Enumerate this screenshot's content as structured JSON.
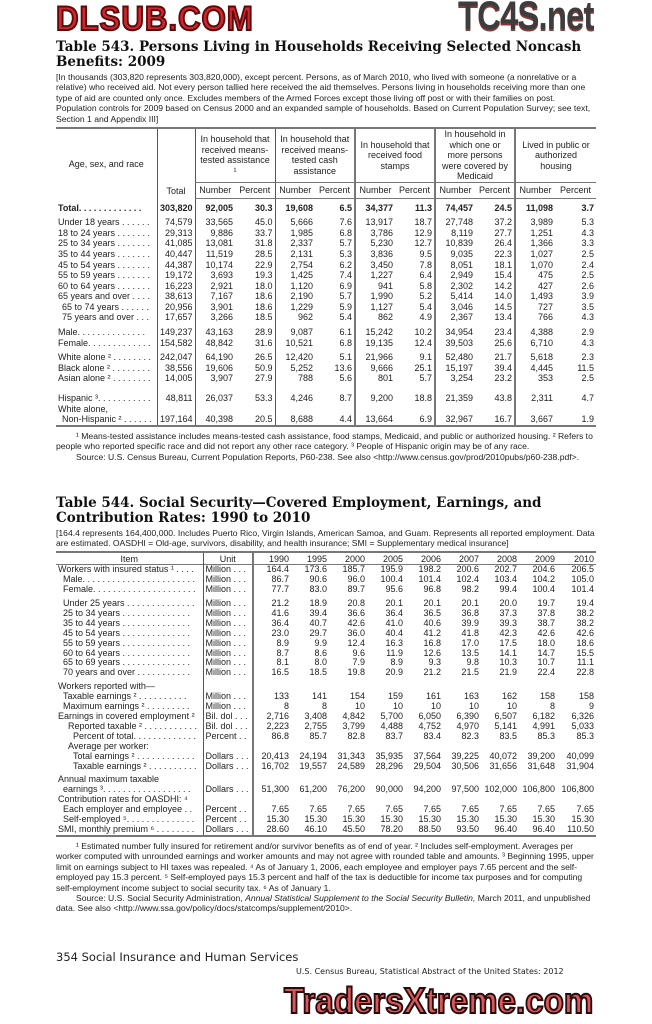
{
  "watermarks": {
    "top": "TC4S.net",
    "middle": "DLSUB.COM",
    "bottom": "TradersXtreme.com"
  },
  "table543": {
    "title": "Table 543. Persons Living in Households Receiving Selected Noncash Benefits: 2009",
    "note": "[In thousands (303,820 represents 303,820,000), except percent. Persons, as of March 2010, who lived with someone (a nonrelative or a relative) who received aid. Not every person tallied here received the aid themselves. Persons living in households receiving more than one type of aid are counted only once. Excludes members of the Armed Forces except those living off post or with their families on post. Population controls for 2009 based on Census 2000 and an expanded sample of households. Based on Current Population Survey; see text, Section 1 and Appendix III]",
    "stub_header": "Age, sex, and race",
    "total_header": "Total",
    "groups": [
      "In household that received means-tested assistance ¹",
      "In household that received means-tested cash assistance",
      "In household that received food stamps",
      "In household in which one or more persons were covered by Medicaid",
      "Lived in public or authorized housing"
    ],
    "sub_number": "Number",
    "sub_percent": "Percent",
    "row_groups": [
      [
        {
          "label": "Total. . . . . . . . . . . . .",
          "bold": true,
          "values": [
            "303,820",
            "92,005",
            "30.3",
            "19,608",
            "6.5",
            "34,377",
            "11.3",
            "74,457",
            "24.5",
            "11,098",
            "3.7"
          ]
        }
      ],
      [
        {
          "label": "Under 18 years . . . . . .",
          "values": [
            "74,579",
            "33,565",
            "45.0",
            "5,666",
            "7.6",
            "13,917",
            "18.7",
            "27,748",
            "37.2",
            "3,989",
            "5.3"
          ]
        },
        {
          "label": "18 to 24 years . . . . . . .",
          "values": [
            "29,313",
            "9,886",
            "33.7",
            "1,985",
            "6.8",
            "3,786",
            "12.9",
            "8,119",
            "27.7",
            "1,251",
            "4.3"
          ]
        },
        {
          "label": "25 to 34 years . . . . . . .",
          "values": [
            "41,085",
            "13,081",
            "31.8",
            "2,337",
            "5.7",
            "5,230",
            "12.7",
            "10,839",
            "26.4",
            "1,366",
            "3.3"
          ]
        },
        {
          "label": "35 to 44 years . . . . . . .",
          "values": [
            "40,447",
            "11,519",
            "28.5",
            "2,131",
            "5.3",
            "3,836",
            "9.5",
            "9,035",
            "22.3",
            "1,027",
            "2.5"
          ]
        },
        {
          "label": "45 to 54 years . . . . . . .",
          "values": [
            "44,387",
            "10,174",
            "22.9",
            "2,754",
            "6.2",
            "3,450",
            "7.8",
            "8,051",
            "18.1",
            "1,070",
            "2.4"
          ]
        },
        {
          "label": "55 to 59 years . . . . . . .",
          "values": [
            "19,172",
            "3,693",
            "19.3",
            "1,425",
            "7.4",
            "1,227",
            "6.4",
            "2,949",
            "15.4",
            "475",
            "2.5"
          ]
        },
        {
          "label": "60 to 64 years . . . . . . .",
          "values": [
            "16,223",
            "2,921",
            "18.0",
            "1,120",
            "6.9",
            "941",
            "5.8",
            "2,302",
            "14.2",
            "427",
            "2.6"
          ]
        },
        {
          "label": "65 years and over . . . .",
          "values": [
            "38,613",
            "7,167",
            "18.6",
            "2,190",
            "5.7",
            "1,990",
            "5.2",
            "5,414",
            "14.0",
            "1,493",
            "3.9"
          ]
        },
        {
          "label": "65 to 74 years . . . . . .",
          "indent": 1,
          "values": [
            "20,956",
            "3,901",
            "18.6",
            "1,229",
            "5.9",
            "1,127",
            "5.4",
            "3,046",
            "14.5",
            "727",
            "3.5"
          ]
        },
        {
          "label": "75 years and over . . .",
          "indent": 1,
          "values": [
            "17,657",
            "3,266",
            "18.5",
            "962",
            "5.4",
            "862",
            "4.9",
            "2,367",
            "13.4",
            "766",
            "4.3"
          ]
        }
      ],
      [
        {
          "label": "Male. . . . . . . . . . . . . .",
          "values": [
            "149,237",
            "43,163",
            "28.9",
            "9,087",
            "6.1",
            "15,242",
            "10.2",
            "34,954",
            "23.4",
            "4,388",
            "2.9"
          ]
        },
        {
          "label": "Female. . . . . . . . . . . . .",
          "values": [
            "154,582",
            "48,842",
            "31.6",
            "10,521",
            "6.8",
            "19,135",
            "12.4",
            "39,503",
            "25.6",
            "6,710",
            "4.3"
          ]
        }
      ],
      [
        {
          "label": "White alone ² . . . . . . . .",
          "values": [
            "242,047",
            "64,190",
            "26.5",
            "12,420",
            "5.1",
            "21,966",
            "9.1",
            "52,480",
            "21.7",
            "5,618",
            "2.3"
          ]
        },
        {
          "label": "Black alone ² . . . . . . . .",
          "values": [
            "38,556",
            "19,606",
            "50.9",
            "5,252",
            "13.6",
            "9,666",
            "25.1",
            "15,197",
            "39.4",
            "4,445",
            "11.5"
          ]
        },
        {
          "label": "Asian alone ² . . . . . . . .",
          "values": [
            "14,005",
            "3,907",
            "27.9",
            "788",
            "5.6",
            "801",
            "5.7",
            "3,254",
            "23.2",
            "353",
            "2.5"
          ]
        }
      ],
      [
        {
          "label": "Hispanic ³. . . . . . . . . . .",
          "values": [
            "48,811",
            "26,037",
            "53.3",
            "4,246",
            "8.7",
            "9,200",
            "18.8",
            "21,359",
            "43.8",
            "2,311",
            "4.7"
          ]
        },
        {
          "label": "White alone,",
          "values": []
        },
        {
          "label": "Non-Hispanic ² . . . . . .",
          "indent": 1,
          "values": [
            "197,164",
            "40,398",
            "20.5",
            "8,688",
            "4.4",
            "13,664",
            "6.9",
            "32,967",
            "16.7",
            "3,667",
            "1.9"
          ]
        }
      ]
    ],
    "footnotes": [
      "¹ Means-tested assistance includes means-tested cash assistance, food stamps, Medicaid, and public or authorized housing. ² Refers to people who reported specific race and did not report any other race category. ³ People of Hispanic origin may be of any race.",
      "Source: U.S. Census Bureau, Current Population Reports, P60-238. See also <http://www.census.gov/prod/2010pubs/p60-238.pdf>."
    ]
  },
  "table544": {
    "title": "Table 544. Social Security—Covered Employment, Earnings, and Contribution Rates: 1990 to 2010",
    "note": "[164.4 represents 164,400,000. Includes Puerto Rico, Virgin Islands, American Samoa, and Guam. Represents all reported employment. Data are estimated. OASDHI = Old-age, survivors, disability, and health insurance; SMI = Supplementary medical insurance]",
    "headers": [
      "Item",
      "Unit",
      "1990",
      "1995",
      "2000",
      "2005",
      "2006",
      "2007",
      "2008",
      "2009",
      "2010"
    ],
    "row_groups": [
      [
        {
          "label": "Workers with insured status ¹ . . . .",
          "unit": "Million . . .",
          "values": [
            "164.4",
            "173.6",
            "185.7",
            "195.9",
            "198.2",
            "200.6",
            "202.7",
            "204.6",
            "206.5"
          ]
        },
        {
          "label": "Male. . . . . . . . . . . . . . . . . . . . . . .",
          "indent": 1,
          "unit": "Million . . .",
          "values": [
            "86.7",
            "90.6",
            "96.0",
            "100.4",
            "101.4",
            "102.4",
            "103.4",
            "104.2",
            "105.0"
          ]
        },
        {
          "label": "Female. . . . . . . . . . . . . . . . . . . . .",
          "indent": 1,
          "unit": "Million . . .",
          "values": [
            "77.7",
            "83.0",
            "89.7",
            "95.6",
            "96.8",
            "98.2",
            "99.4",
            "100.4",
            "101.4"
          ]
        }
      ],
      [
        {
          "label": "Under 25 years . . . . . . . . . . . . . .",
          "indent": 1,
          "unit": "Million . . .",
          "values": [
            "21.2",
            "18.9",
            "20.8",
            "20.1",
            "20.1",
            "20.1",
            "20.0",
            "19.7",
            "19.4"
          ]
        },
        {
          "label": "25 to 34 years . . . . . . . . . . . . . .",
          "indent": 1,
          "unit": "Million . . .",
          "values": [
            "41.6",
            "39.4",
            "36.6",
            "36.4",
            "36.5",
            "36.8",
            "37.3",
            "37.8",
            "38.2"
          ]
        },
        {
          "label": "35 to 44 years . . . . . . . . . . . . . .",
          "indent": 1,
          "unit": "Million . . .",
          "values": [
            "36.4",
            "40.7",
            "42.6",
            "41.0",
            "40.6",
            "39.9",
            "39.3",
            "38.7",
            "38.2"
          ]
        },
        {
          "label": "45 to 54 years . . . . . . . . . . . . . .",
          "indent": 1,
          "unit": "Million . . .",
          "values": [
            "23.0",
            "29.7",
            "36.0",
            "40.4",
            "41.2",
            "41.8",
            "42.3",
            "42.6",
            "42.6"
          ]
        },
        {
          "label": "55 to 59 years . . . . . . . . . . . . . .",
          "indent": 1,
          "unit": "Million . . .",
          "values": [
            "8.9",
            "9.9",
            "12.4",
            "16.3",
            "16.8",
            "17.0",
            "17.5",
            "18.0",
            "18.6"
          ]
        },
        {
          "label": "60 to 64 years . . . . . . . . . . . . . .",
          "indent": 1,
          "unit": "Million . . .",
          "values": [
            "8.7",
            "8.6",
            "9.6",
            "11.9",
            "12.6",
            "13.5",
            "14.1",
            "14.7",
            "15.5"
          ]
        },
        {
          "label": "65 to 69 years . . . . . . . . . . . . . .",
          "indent": 1,
          "unit": "Million . . .",
          "values": [
            "8.1",
            "8.0",
            "7.9",
            "8.9",
            "9.3",
            "9.8",
            "10.3",
            "10.7",
            "11.1"
          ]
        },
        {
          "label": "70 years and over . . . . . . . . . . .",
          "indent": 1,
          "unit": "Million . . .",
          "values": [
            "16.5",
            "18.5",
            "19.8",
            "20.9",
            "21.2",
            "21.5",
            "21.9",
            "22.4",
            "22.8"
          ]
        }
      ],
      [
        {
          "label": "Workers reported with—",
          "unit": "",
          "values": []
        },
        {
          "label": "Taxable earnings ² . . . . . . . . . .",
          "indent": 1,
          "unit": "Million . . .",
          "values": [
            "133",
            "141",
            "154",
            "159",
            "161",
            "163",
            "162",
            "158",
            "158"
          ]
        },
        {
          "label": "Maximum earnings ² . . . . . . . . .",
          "indent": 1,
          "unit": "Million . . .",
          "values": [
            "8",
            "8",
            "10",
            "10",
            "10",
            "10",
            "10",
            "8",
            "9"
          ]
        },
        {
          "label": "Earnings in covered employment ²",
          "unit": "Bil. dol . . .",
          "values": [
            "2,716",
            "3,408",
            "4,842",
            "5,700",
            "6,050",
            "6,390",
            "6,507",
            "6,182",
            "6,326"
          ]
        },
        {
          "label": "Reported taxable ² . . . . . . . . . . .",
          "indent": 2,
          "unit": "Bil. dol . . .",
          "values": [
            "2,223",
            "2,755",
            "3,799",
            "4,488",
            "4,752",
            "4,970",
            "5,141",
            "4,991",
            "5,033"
          ]
        },
        {
          "label": "Percent of total. . . . . . . . . . . . .",
          "indent": 3,
          "unit": "Percent . .",
          "values": [
            "86.8",
            "85.7",
            "82.8",
            "83.7",
            "83.4",
            "82.3",
            "83.5",
            "85.3",
            "85.3"
          ]
        },
        {
          "label": "Average per worker:",
          "indent": 2,
          "unit": "",
          "values": []
        },
        {
          "label": "Total earnings ² . . . . . . . . . . . .",
          "indent": 3,
          "unit": "Dollars . . .",
          "values": [
            "20,413",
            "24,194",
            "31,343",
            "35,935",
            "37,564",
            "39,225",
            "40,072",
            "39,200",
            "40,099"
          ]
        },
        {
          "label": "Taxable earnings ² . . . . . . . . . .",
          "indent": 3,
          "unit": "Dollars . . .",
          "values": [
            "16,702",
            "19,557",
            "24,589",
            "28,296",
            "29,504",
            "30,506",
            "31,656",
            "31,648",
            "31,904"
          ]
        }
      ],
      [
        {
          "label": "Annual maximum taxable",
          "unit": "",
          "values": []
        },
        {
          "label": "earnings ³. . . . . . . . . . . . . . . . . .",
          "indent": 1,
          "unit": "Dollars . . .",
          "values": [
            "51,300",
            "61,200",
            "76,200",
            "90,000",
            "94,200",
            "97,500",
            "102,000",
            "106,800",
            "106,800"
          ]
        },
        {
          "label": "Contribution rates for OASDHI: ⁴",
          "unit": "",
          "values": []
        },
        {
          "label": "Each employer and employee . .",
          "indent": 1,
          "unit": "Percent . .",
          "values": [
            "7.65",
            "7.65",
            "7.65",
            "7.65",
            "7.65",
            "7.65",
            "7.65",
            "7.65",
            "7.65"
          ]
        },
        {
          "label": "Self-employed ⁵. . . . . . . . . . . . . .",
          "indent": 1,
          "unit": "Percent . .",
          "values": [
            "15.30",
            "15.30",
            "15.30",
            "15.30",
            "15.30",
            "15.30",
            "15.30",
            "15.30",
            "15.30"
          ]
        },
        {
          "label": "SMI, monthly premium ⁶ . . . . . . . .",
          "unit": "Dollars . . .",
          "values": [
            "28.60",
            "46.10",
            "45.50",
            "78.20",
            "88.50",
            "93.50",
            "96.40",
            "96.40",
            "110.50"
          ]
        }
      ]
    ],
    "footnotes": [
      "¹ Estimated number fully insured for retirement and/or survivor benefits as of end of year. ² Includes self-employment. Averages per worker computed with unrounded earnings and worker amounts and may not agree with rounded table and amounts. ³ Beginning 1995, upper limit on earnings subject to HI taxes was repealed. ⁴ As of January 1, 2006, each employee and employer pays 7.65 percent and the self-employed pay 15.3 percent. ⁵ Self-employed pays 15.3 percent and half of the tax is deductible for income tax purposes and for computing self-employment income subject to social security tax. ⁶ As of January 1."
    ],
    "source_prefix": "Source: U.S. Social Security Administration, ",
    "source_italic": "Annual Statistical Supplement to the Social Security Bulletin,",
    "source_suffix": " March 2011, and unpublished data. See also <http://www.ssa.gov/policy/docs/statcomps/supplement/2010>."
  },
  "footer": {
    "page_section": "354  Social Insurance and Human Services",
    "publication": "U.S. Census Bureau, Statistical Abstract of the United States: 2012"
  }
}
